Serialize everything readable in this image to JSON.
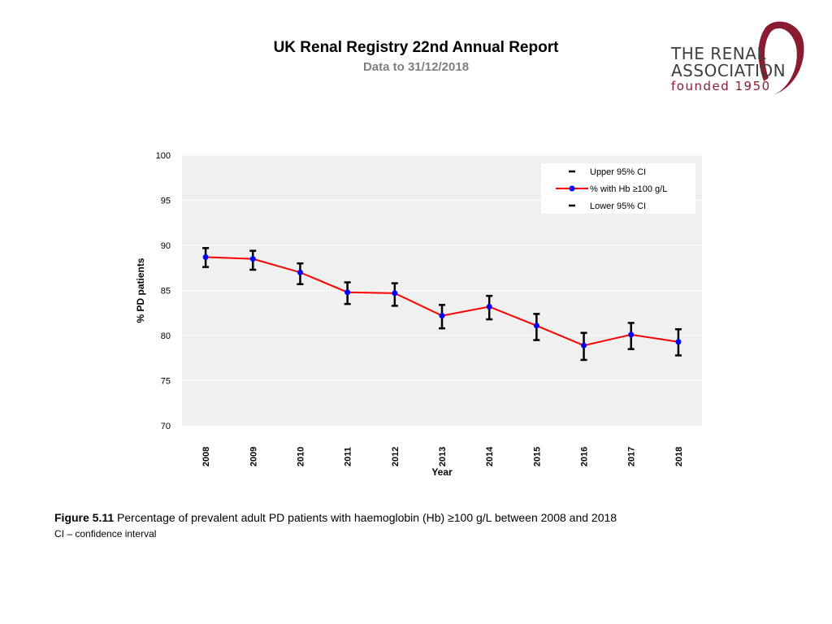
{
  "header": {
    "title": "UK Renal Registry 22nd Annual Report",
    "subtitle": "Data to 31/12/2018"
  },
  "logo": {
    "line1": "THE RENAL",
    "line2": "ASSOCIATION",
    "line3": "founded 1950"
  },
  "figure": {
    "label": "Figure 5.11",
    "caption": "Percentage of prevalent adult PD patients with haemoglobin (Hb) ≥100 g/L between 2008 and 2018",
    "note": "CI – confidence interval"
  },
  "chart_data": {
    "type": "line",
    "title": "",
    "xlabel": "Year",
    "ylabel": "% PD patients",
    "ylim": [
      70,
      100
    ],
    "yticks": [
      70,
      75,
      80,
      85,
      90,
      95,
      100
    ],
    "grid": true,
    "legend_position": "top-right",
    "categories": [
      "2008",
      "2009",
      "2010",
      "2011",
      "2012",
      "2013",
      "2014",
      "2015",
      "2016",
      "2017",
      "2018"
    ],
    "series": [
      {
        "name": "Upper 95% CI",
        "values": [
          89.7,
          89.4,
          88.0,
          85.9,
          85.8,
          83.4,
          84.4,
          82.4,
          80.3,
          81.4,
          80.7
        ]
      },
      {
        "name": "% with Hb ≥100 g/L",
        "values": [
          88.7,
          88.5,
          87.0,
          84.8,
          84.7,
          82.2,
          83.2,
          81.1,
          78.9,
          80.1,
          79.3
        ]
      },
      {
        "name": "Lower 95% CI",
        "values": [
          87.6,
          87.3,
          85.7,
          83.5,
          83.3,
          80.8,
          81.8,
          79.5,
          77.3,
          78.5,
          77.8
        ]
      }
    ],
    "colors": {
      "line": "#ff0000",
      "marker": "#0000ff",
      "ci": "#000000",
      "plot_bg": "#f0f0f0",
      "grid": "#ffffff"
    }
  }
}
